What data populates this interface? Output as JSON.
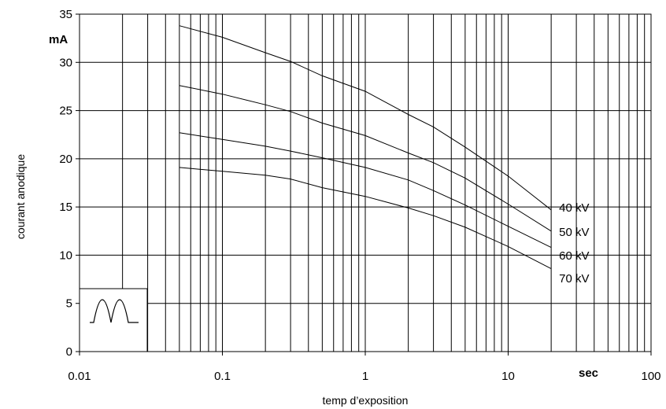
{
  "chart_data": {
    "type": "line",
    "x_scale": "log",
    "xlim": [
      0.01,
      100
    ],
    "ylim": [
      0,
      35
    ],
    "x_ticks": [
      0.01,
      0.1,
      1,
      10,
      100
    ],
    "x_tick_labels": [
      "0.01",
      "0.1",
      "1",
      "10",
      "100"
    ],
    "y_ticks": [
      0,
      5,
      10,
      15,
      20,
      25,
      30,
      35
    ],
    "y_tick_labels": [
      "0",
      "5",
      "10",
      "15",
      "20",
      "25",
      "30",
      "35"
    ],
    "xlabel": "temp d’exposition",
    "ylabel": "courant anodique",
    "x_unit": "sec",
    "y_unit": "mA",
    "grid": "log-minor-vertical, major-horizontal",
    "inset_icon": "full-wave-rectified-waveform-icon",
    "series": [
      {
        "name": "40 kV",
        "x": [
          0.05,
          0.1,
          0.2,
          0.3,
          0.5,
          1,
          2,
          3,
          5,
          10,
          20
        ],
        "y": [
          33.8,
          32.6,
          31.0,
          30.1,
          28.6,
          27.0,
          24.6,
          23.3,
          21.2,
          18.2,
          14.7
        ]
      },
      {
        "name": "50 kV",
        "x": [
          0.05,
          0.1,
          0.2,
          0.3,
          0.5,
          1,
          2,
          3,
          5,
          10,
          20
        ],
        "y": [
          27.6,
          26.7,
          25.6,
          24.9,
          23.7,
          22.4,
          20.6,
          19.6,
          18.0,
          15.3,
          12.5
        ]
      },
      {
        "name": "60 kV",
        "x": [
          0.05,
          0.1,
          0.2,
          0.3,
          0.5,
          1,
          2,
          3,
          5,
          10,
          20
        ],
        "y": [
          22.7,
          22.0,
          21.3,
          20.8,
          20.1,
          19.1,
          17.8,
          16.7,
          15.2,
          13.0,
          10.8
        ]
      },
      {
        "name": "70 kV",
        "x": [
          0.05,
          0.1,
          0.2,
          0.3,
          0.5,
          1,
          2,
          3,
          5,
          10,
          20
        ],
        "y": [
          19.1,
          18.7,
          18.3,
          17.9,
          17.0,
          16.1,
          14.9,
          14.1,
          12.9,
          10.9,
          8.6
        ]
      }
    ]
  }
}
